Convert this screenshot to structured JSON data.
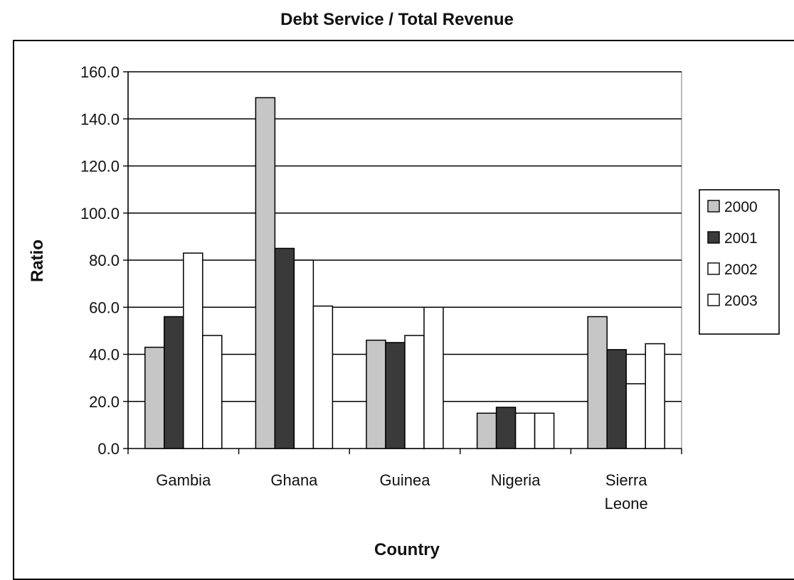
{
  "chart_data": {
    "type": "bar",
    "title": "Debt Service / Total Revenue",
    "xlabel": "Country",
    "ylabel": "Ratio",
    "categories": [
      "Gambia",
      "Ghana",
      "Guinea",
      "Nigeria",
      "Sierra Leone"
    ],
    "category_lines": [
      [
        "Gambia"
      ],
      [
        "Ghana"
      ],
      [
        "Guinea"
      ],
      [
        "Nigeria"
      ],
      [
        "Sierra",
        "Leone"
      ]
    ],
    "series": [
      {
        "name": "2000",
        "values": [
          43,
          149,
          46,
          15,
          56
        ],
        "color": "#c6c6c6"
      },
      {
        "name": "2001",
        "values": [
          56,
          85,
          45,
          17.5,
          42
        ],
        "color": "#3a3a3a"
      },
      {
        "name": "2002",
        "values": [
          83,
          80,
          48,
          15,
          27.5
        ],
        "color": "#ffffff"
      },
      {
        "name": "2003",
        "values": [
          48,
          60.5,
          60,
          15,
          44.5
        ],
        "color": "#ffffff"
      }
    ],
    "ylim": [
      0,
      160
    ],
    "yticks": [
      "0.0",
      "20.0",
      "40.0",
      "60.0",
      "80.0",
      "100.0",
      "120.0",
      "140.0",
      "160.0"
    ],
    "grid": true,
    "legend_position": "right"
  }
}
